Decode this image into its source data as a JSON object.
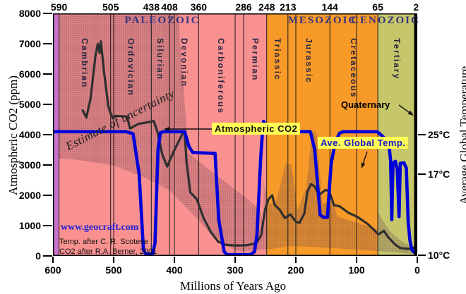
{
  "eras": {
    "paleozoic": "PALEOZOIC",
    "mesozoic": "MESOZOIC",
    "cenozoic": "CENOZOIC"
  },
  "annotations": {
    "estimate": "Estimate of uncertainty",
    "co2_callout": "Atmospheric CO2",
    "temp_callout": "Ave. Global Temp.",
    "quaternary": "Quaternary",
    "website": "www.geocraft.com",
    "credit_temp": "Temp. after C. R. Scotese",
    "credit_co2": "CO2 after R.A. Berner, 2001"
  },
  "axes": {
    "x": {
      "label": "Millions of Years Ago",
      "ticks": [
        600,
        500,
        400,
        300,
        200,
        100,
        0
      ],
      "range": [
        600,
        0
      ]
    },
    "left": {
      "label": "Atmospheric CO2 (ppm)",
      "ticks": [
        0,
        1000,
        2000,
        3000,
        4000,
        5000,
        6000,
        7000,
        8000
      ],
      "range": [
        0,
        8000
      ]
    },
    "right": {
      "label": "Average Global Temperature",
      "ticks": [
        {
          "value": 25,
          "label": "25°C"
        },
        {
          "value": 17,
          "label": "17°C"
        },
        {
          "value": 10,
          "label": "10°C"
        }
      ]
    }
  },
  "colors": {
    "precambrian": "#cb72cb",
    "paleozoic": "#fa9191",
    "mesozoic": "#f89a28",
    "cenozoic": "#c6c66b",
    "quaternary_strip": "#000000",
    "co2_line": "#2f2f2f",
    "temp_line": "#0000d8",
    "callout_bg": "#ffff55",
    "temp_callout_text": "#1414cc",
    "era_text": "#333380",
    "period_text": "#26263f",
    "website_text": "#2121d2"
  },
  "chart_data": {
    "type": "line",
    "x_unit": "millions of years ago",
    "x_range": [
      600,
      0
    ],
    "ylim_left_ppm": [
      0,
      8000
    ],
    "right_axis_ticks_c": [
      10,
      17,
      25
    ],
    "grid": "vertical-only",
    "boundaries_ma": [
      590,
      505,
      438,
      408,
      360,
      286,
      248,
      213,
      144,
      65,
      2
    ],
    "century_gridlines_ma": [
      500,
      400,
      300,
      200,
      100
    ],
    "bands": [
      {
        "name": "Precambrian",
        "from": 600,
        "to": 590,
        "color": "#cb72cb"
      },
      {
        "name": "Paleozoic",
        "from": 590,
        "to": 248,
        "color": "#fa9191"
      },
      {
        "name": "Mesozoic",
        "from": 248,
        "to": 65,
        "color": "#f89a28"
      },
      {
        "name": "Cenozoic",
        "from": 65,
        "to": 2,
        "color": "#c6c66b"
      },
      {
        "name": "Quaternary",
        "from": 2,
        "to": 0,
        "color": "#000000"
      }
    ],
    "eras": [
      {
        "name": "PALEOZOIC",
        "start": 590,
        "end": 248
      },
      {
        "name": "MESOZOIC",
        "start": 248,
        "end": 65
      },
      {
        "name": "CENOZOIC",
        "start": 65,
        "end": 2
      }
    ],
    "periods": [
      {
        "name": "Cambrian",
        "start": 590,
        "end": 505
      },
      {
        "name": "Ordovician",
        "start": 505,
        "end": 438
      },
      {
        "name": "Silurian",
        "start": 438,
        "end": 408
      },
      {
        "name": "Devonian",
        "start": 408,
        "end": 360
      },
      {
        "name": "Carboniferous",
        "start": 360,
        "end": 286
      },
      {
        "name": "Permian",
        "start": 286,
        "end": 248
      },
      {
        "name": "Triassic",
        "start": 248,
        "end": 213
      },
      {
        "name": "Jurassic",
        "start": 213,
        "end": 144
      },
      {
        "name": "Cretaceous",
        "start": 144,
        "end": 65
      },
      {
        "name": "Tertiary",
        "start": 65,
        "end": 2
      },
      {
        "name": "Quaternary",
        "start": 2,
        "end": 0
      }
    ],
    "series": [
      {
        "name": "Atmospheric CO2",
        "unit": "ppm",
        "axis": "left",
        "color": "#2f2f2f",
        "points": [
          [
            551,
            4800
          ],
          [
            545,
            4560
          ],
          [
            538,
            5200
          ],
          [
            530,
            6600
          ],
          [
            526,
            7000
          ],
          [
            523,
            6700
          ],
          [
            521,
            7080
          ],
          [
            516,
            6100
          ],
          [
            509,
            4950
          ],
          [
            505,
            4700
          ],
          [
            501,
            4540
          ],
          [
            497,
            4620
          ],
          [
            478,
            4600
          ],
          [
            473,
            4200
          ],
          [
            460,
            4350
          ],
          [
            434,
            4450
          ],
          [
            428,
            4100
          ],
          [
            420,
            3350
          ],
          [
            412,
            2950
          ],
          [
            401,
            3450
          ],
          [
            386,
            4050
          ],
          [
            383,
            4030
          ],
          [
            380,
            3100
          ],
          [
            374,
            2100
          ],
          [
            363,
            1870
          ],
          [
            352,
            1250
          ],
          [
            340,
            790
          ],
          [
            328,
            470
          ],
          [
            316,
            370
          ],
          [
            300,
            345
          ],
          [
            282,
            350
          ],
          [
            265,
            415
          ],
          [
            257,
            690
          ],
          [
            251,
            1500
          ],
          [
            245,
            1870
          ],
          [
            239,
            2000
          ],
          [
            235,
            1690
          ],
          [
            227,
            1530
          ],
          [
            218,
            1250
          ],
          [
            209,
            1370
          ],
          [
            200,
            1130
          ],
          [
            194,
            1090
          ],
          [
            186,
            1400
          ],
          [
            181,
            2110
          ],
          [
            175,
            2370
          ],
          [
            169,
            2290
          ],
          [
            162,
            2010
          ],
          [
            151,
            2180
          ],
          [
            145,
            2130
          ],
          [
            137,
            1670
          ],
          [
            128,
            1640
          ],
          [
            114,
            1430
          ],
          [
            99,
            1290
          ],
          [
            82,
            1060
          ],
          [
            71,
            850
          ],
          [
            64,
            710
          ],
          [
            55,
            830
          ],
          [
            48,
            620
          ],
          [
            36,
            370
          ],
          [
            28,
            260
          ],
          [
            15,
            230
          ],
          [
            0,
            290
          ]
        ]
      },
      {
        "name": "Ave. Global Temp.",
        "unit": "°C",
        "axis": "right",
        "color": "#0000d8",
        "points": [
          [
            600,
            25.6
          ],
          [
            480,
            25.6
          ],
          [
            468,
            25.2
          ],
          [
            458,
            17
          ],
          [
            451,
            11
          ],
          [
            447,
            10.2
          ],
          [
            436,
            10.2
          ],
          [
            432,
            12
          ],
          [
            427,
            22
          ],
          [
            423,
            25.4
          ],
          [
            418,
            25.6
          ],
          [
            383,
            25.6
          ],
          [
            376,
            22.6
          ],
          [
            370,
            21.4
          ],
          [
            352,
            21.3
          ],
          [
            333,
            21.2
          ],
          [
            327,
            16
          ],
          [
            318,
            10.6
          ],
          [
            313,
            10.1
          ],
          [
            275,
            10.1
          ],
          [
            268,
            10.6
          ],
          [
            264,
            13.5
          ],
          [
            258,
            20
          ],
          [
            255,
            25.5
          ],
          [
            253,
            27.7
          ],
          [
            250,
            27
          ],
          [
            247,
            25.8
          ],
          [
            244,
            25.6
          ],
          [
            176,
            25.6
          ],
          [
            169,
            22
          ],
          [
            160,
            16.8
          ],
          [
            155,
            16.4
          ],
          [
            148,
            16.4
          ],
          [
            142,
            19
          ],
          [
            135,
            23.5
          ],
          [
            128,
            25.3
          ],
          [
            122,
            25.6
          ],
          [
            66,
            25.6
          ],
          [
            62,
            25.2
          ],
          [
            55,
            24.4
          ],
          [
            49,
            23.3
          ],
          [
            46,
            22.2
          ],
          [
            44,
            19.8
          ],
          [
            42,
            16.0
          ],
          [
            40,
            19.2
          ],
          [
            36,
            19.6
          ],
          [
            33,
            17.9
          ],
          [
            30,
            16.5
          ],
          [
            28,
            19.2
          ],
          [
            22,
            19.3
          ],
          [
            18,
            18.2
          ],
          [
            15,
            15.6
          ],
          [
            12,
            12.4
          ],
          [
            9,
            10.9
          ],
          [
            5,
            10.5
          ],
          [
            2,
            10.8
          ],
          [
            0,
            11.2
          ]
        ]
      }
    ],
    "uncertainty_bands": [
      {
        "region": "paleozoic",
        "unit": "ma_ppm",
        "polygon": [
          [
            590,
            8000
          ],
          [
            394,
            8000
          ],
          [
            377,
            3400
          ],
          [
            330,
            2650
          ],
          [
            279,
            1870
          ],
          [
            258,
            1480
          ],
          [
            253,
            900
          ],
          [
            253,
            220
          ],
          [
            270,
            180
          ],
          [
            293,
            155
          ],
          [
            328,
            435
          ],
          [
            363,
            1245
          ],
          [
            409,
            2175
          ],
          [
            455,
            2640
          ],
          [
            502,
            2990
          ],
          [
            551,
            3150
          ],
          [
            590,
            3220
          ]
        ]
      },
      {
        "region": "mesozoic",
        "unit": "ma_ppm",
        "polygon": [
          [
            253,
            2450
          ],
          [
            245,
            1700
          ],
          [
            232,
            1800
          ],
          [
            217,
            3050
          ],
          [
            207,
            3000
          ],
          [
            197,
            1500
          ],
          [
            183,
            2250
          ],
          [
            173,
            4150
          ],
          [
            166,
            4050
          ],
          [
            156,
            1700
          ],
          [
            141,
            1900
          ],
          [
            131,
            1300
          ],
          [
            101,
            1100
          ],
          [
            66,
            900
          ],
          [
            66,
            160
          ],
          [
            100,
            210
          ],
          [
            140,
            260
          ],
          [
            180,
            310
          ],
          [
            215,
            320
          ],
          [
            240,
            230
          ],
          [
            253,
            220
          ]
        ]
      },
      {
        "region": "cenozoic",
        "unit": "ma_ppm",
        "polygon": [
          [
            66,
            1500
          ],
          [
            55,
            1100
          ],
          [
            40,
            700
          ],
          [
            20,
            400
          ],
          [
            2,
            340
          ],
          [
            2,
            60
          ],
          [
            20,
            90
          ],
          [
            40,
            130
          ],
          [
            66,
            160
          ]
        ]
      }
    ],
    "arrows": [
      {
        "name": "co2-arrow",
        "from": [
          227,
          164
        ],
        "to": [
          157,
          164
        ]
      },
      {
        "name": "temp-arrow",
        "from": [
          445,
          196
        ],
        "to": [
          437,
          220
        ]
      },
      {
        "name": "quaternary-arrow",
        "from": [
          490,
          130
        ],
        "to": [
          511,
          145
        ]
      }
    ]
  }
}
